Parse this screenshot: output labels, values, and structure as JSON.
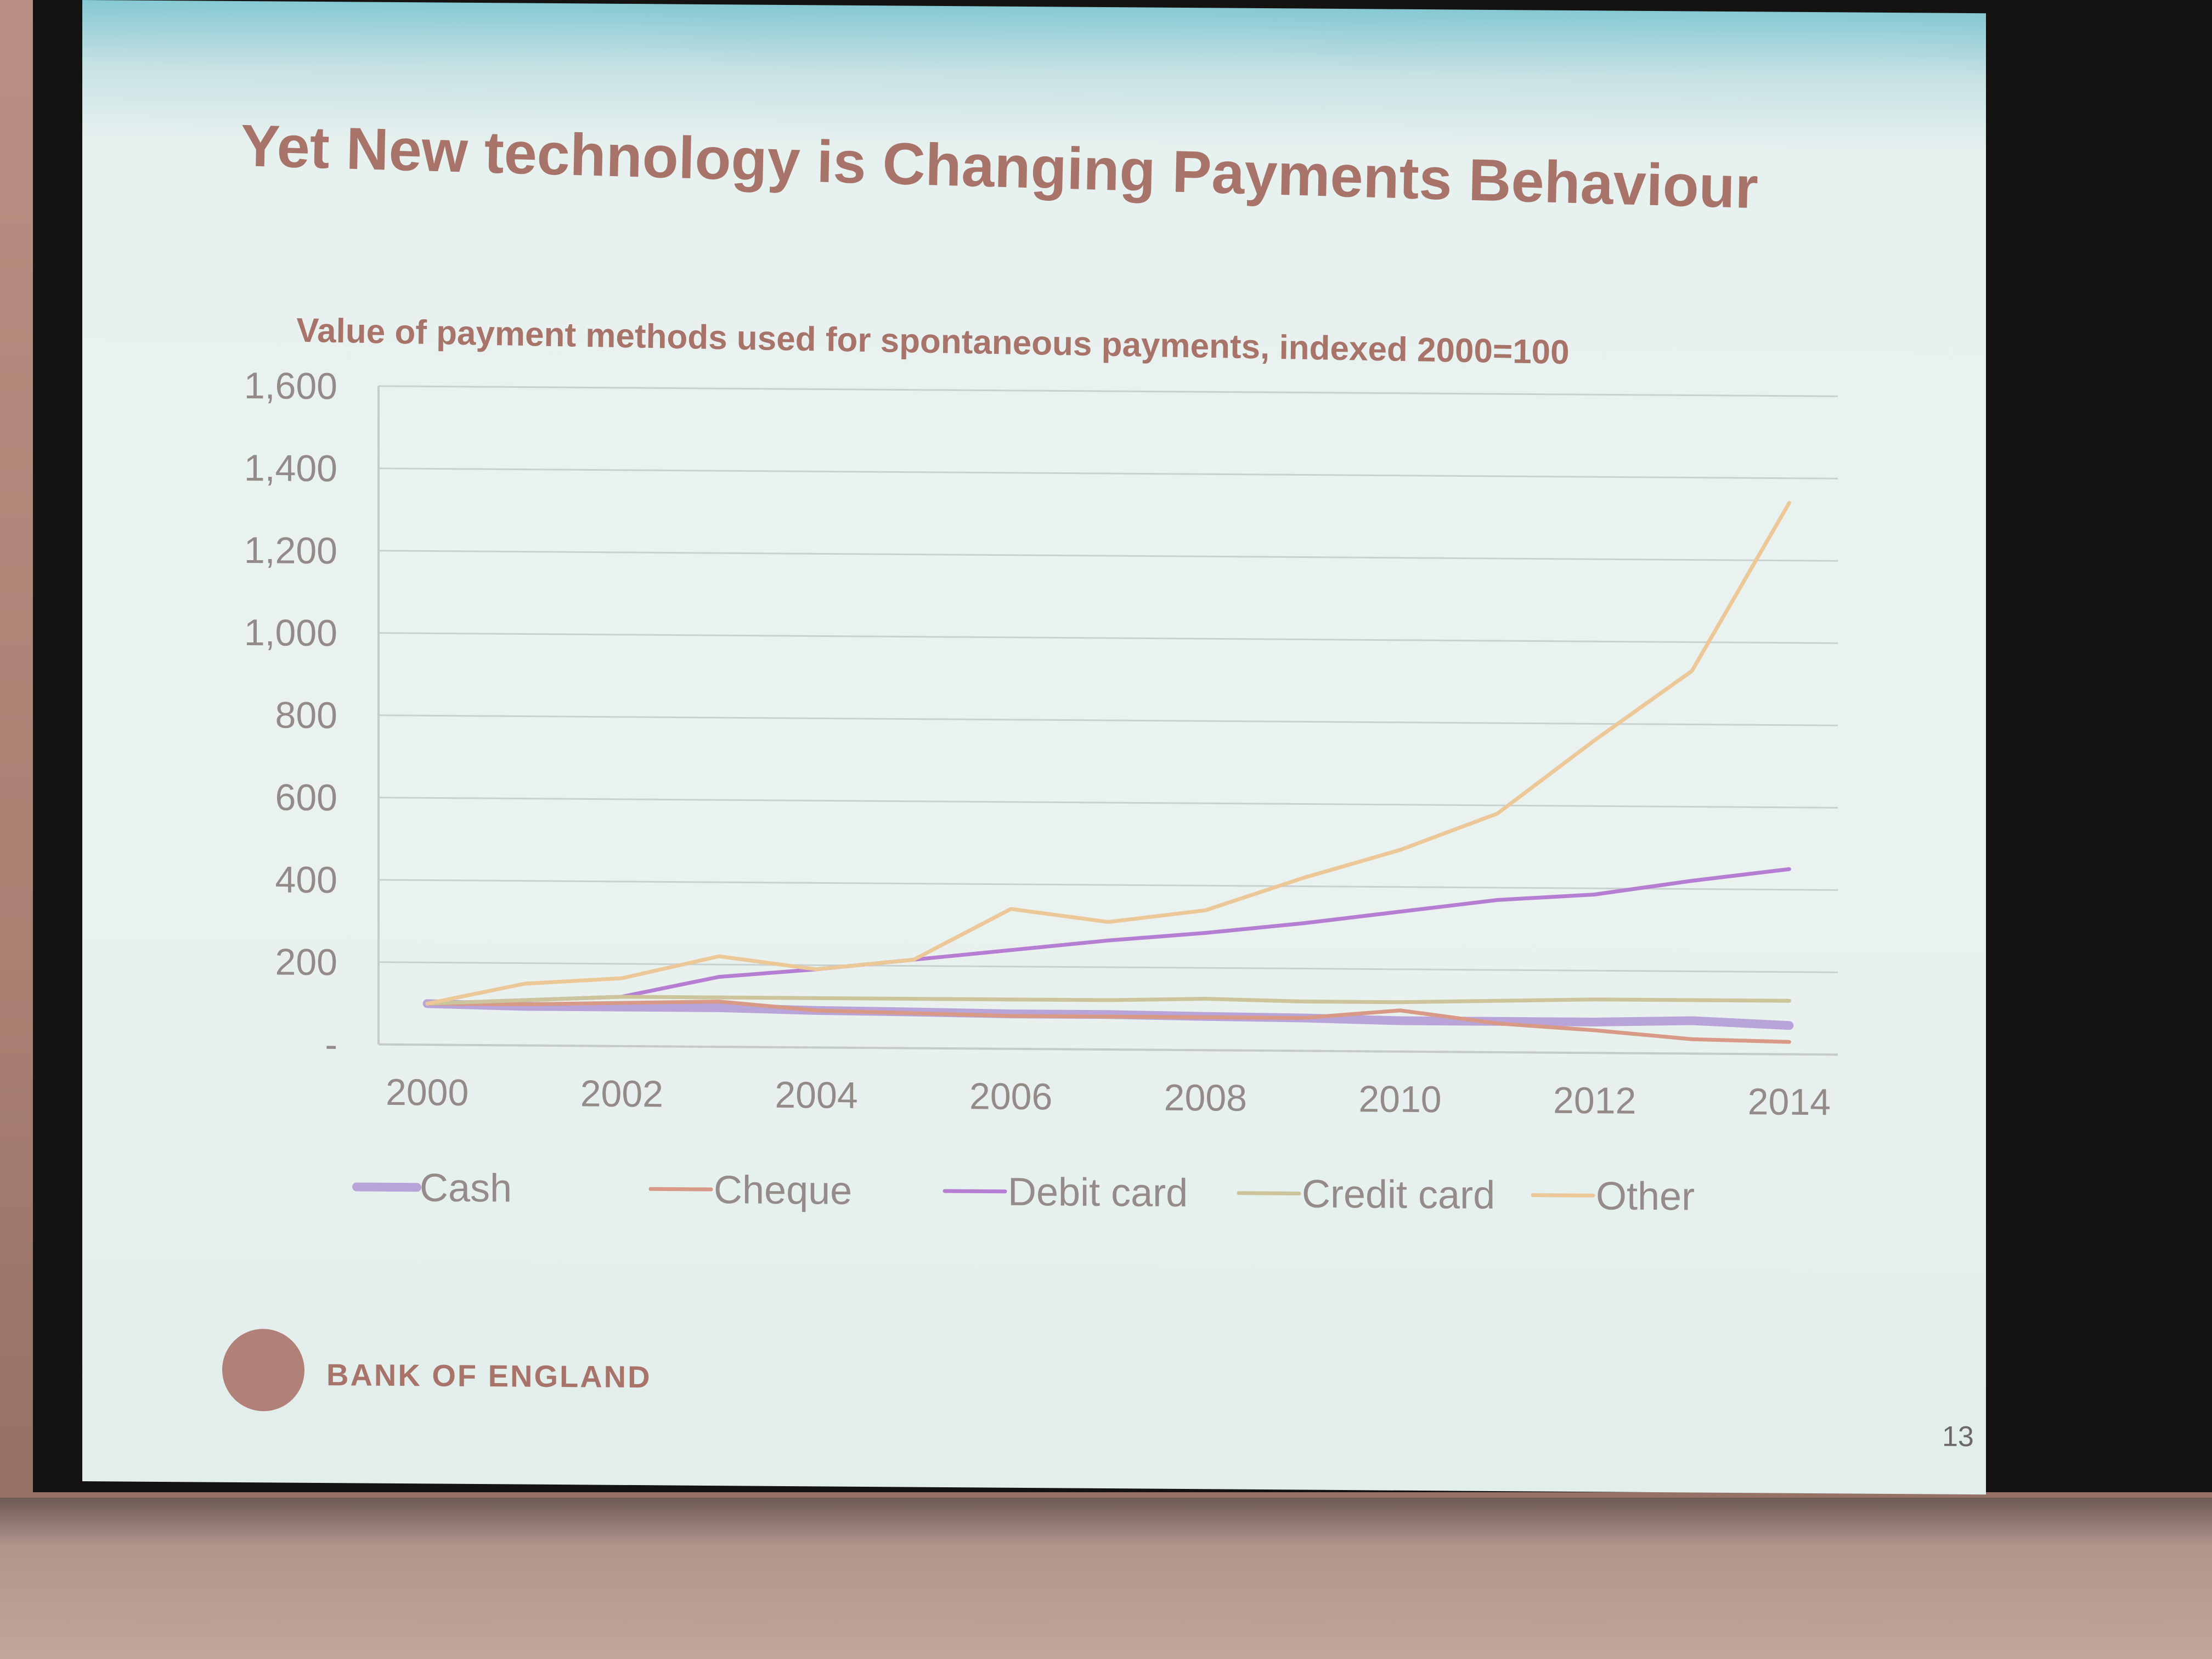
{
  "slide": {
    "title": "Yet New technology is Changing Payments Behaviour",
    "organization": "BANK OF ENGLAND",
    "page_number": "13"
  },
  "colors": {
    "cash": "#b8a4d8",
    "cheque": "#d89a86",
    "debit_card": "#b57ed3",
    "credit_card": "#ccc49a",
    "other": "#ecc797",
    "title": "#a8746a"
  },
  "chart_data": {
    "type": "line",
    "title": "Value of payment methods used for spontaneous payments, indexed 2000=100",
    "xlabel": "",
    "ylabel": "",
    "x": [
      2000,
      2001,
      2002,
      2003,
      2004,
      2005,
      2006,
      2007,
      2008,
      2009,
      2010,
      2011,
      2012,
      2013,
      2014
    ],
    "xticks": [
      "2000",
      "2002",
      "2004",
      "2006",
      "2008",
      "2010",
      "2012",
      "2014"
    ],
    "xtick_values": [
      2000,
      2002,
      2004,
      2006,
      2008,
      2010,
      2012,
      2014
    ],
    "yticks": [
      "-",
      "200",
      "400",
      "600",
      "800",
      "1,000",
      "1,200",
      "1,400",
      "1,600"
    ],
    "ytick_values": [
      0,
      200,
      400,
      600,
      800,
      1000,
      1200,
      1400,
      1600
    ],
    "ylim": [
      0,
      1600
    ],
    "xlim": [
      1999.5,
      2014.5
    ],
    "grid": "horizontal",
    "legend_position": "bottom",
    "series": [
      {
        "name": "Cash",
        "color_key": "cash",
        "line_weight": "thick",
        "values": [
          100,
          95,
          95,
          95,
          90,
          88,
          85,
          85,
          82,
          80,
          75,
          75,
          75,
          80,
          70
        ]
      },
      {
        "name": "Cheque",
        "color_key": "cheque",
        "line_weight": "normal",
        "values": [
          100,
          100,
          105,
          110,
          90,
          85,
          80,
          80,
          80,
          80,
          100,
          70,
          55,
          35,
          30
        ]
      },
      {
        "name": "Debit card",
        "color_key": "debit_card",
        "line_weight": "normal",
        "values": [
          100,
          110,
          120,
          170,
          190,
          215,
          240,
          265,
          285,
          310,
          340,
          370,
          385,
          420,
          450
        ]
      },
      {
        "name": "Credit card",
        "color_key": "credit_card",
        "line_weight": "normal",
        "values": [
          100,
          110,
          120,
          120,
          120,
          120,
          120,
          120,
          125,
          120,
          120,
          125,
          130,
          130,
          130
        ]
      },
      {
        "name": "Other",
        "color_key": "other",
        "line_weight": "normal",
        "values": [
          100,
          150,
          165,
          220,
          190,
          215,
          340,
          310,
          340,
          420,
          490,
          580,
          760,
          930,
          1340
        ]
      }
    ]
  }
}
